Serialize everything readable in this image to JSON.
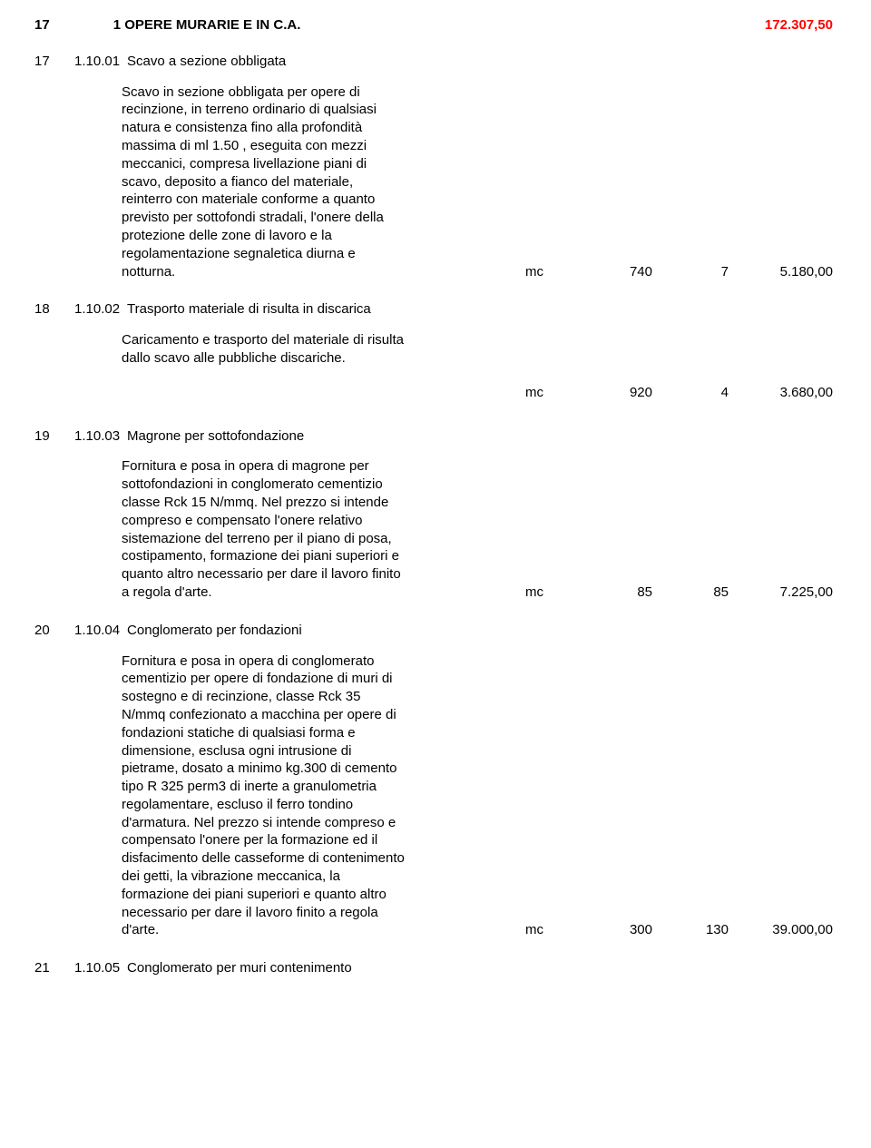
{
  "section": {
    "num": "17",
    "code": "1",
    "title": "OPERE MURARIE E IN C.A.",
    "total": "172.307,50"
  },
  "items": [
    {
      "num": "17",
      "code": "1.10.01",
      "title": "Scavo a sezione obbligata",
      "desc": "Scavo in sezione obbligata per opere di\nrecinzione, in terreno ordinario di qualsiasi\nnatura e consistenza fino alla profondità\nmassima di ml 1.50 , eseguita con mezzi\nmeccanici, compresa livellazione piani di\nscavo, deposito a fianco del materiale,\nreinterro con materiale conforme a quanto\nprevisto per sottofondi stradali, l'onere della\nprotezione delle zone di lavoro e la\nregolamentazione segnaletica diurna e\nnotturna.",
      "unit": "mc",
      "qty": "740",
      "price": "7",
      "total": "5.180,00",
      "valuesInline": true
    },
    {
      "num": "18",
      "code": "1.10.02",
      "title": "Trasporto materiale di risulta in discarica",
      "desc": "Caricamento e trasporto del materiale di risulta\ndallo scavo alle pubbliche discariche.",
      "unit": "mc",
      "qty": "920",
      "price": "4",
      "total": "3.680,00",
      "valuesInline": false
    },
    {
      "num": "19",
      "code": "1.10.03",
      "title": "Magrone per sottofondazione",
      "desc": "Fornitura e posa in opera di magrone per\nsottofondazioni in conglomerato cementizio\nclasse Rck 15 N/mmq. Nel prezzo si intende\ncompreso e compensato l'onere relativo\nsistemazione del terreno per il piano di posa,\ncostipamento, formazione dei piani superiori e\nquanto altro necessario per dare il lavoro finito\na regola d'arte.",
      "unit": "mc",
      "qty": "85",
      "price": "85",
      "total": "7.225,00",
      "valuesInline": true
    },
    {
      "num": "20",
      "code": "1.10.04",
      "title": "Conglomerato per fondazioni",
      "desc": "Fornitura e posa in opera di conglomerato\ncementizio per opere di fondazione di muri di\nsostegno e di recinzione, classe Rck 35\nN/mmq confezionato a macchina per opere di\nfondazioni statiche di qualsiasi forma e\ndimensione, esclusa ogni intrusione di\npietrame, dosato a minimo kg.300 di cemento\ntipo R 325 perm3 di inerte a granulometria\nregolamentare, escluso il ferro tondino\nd'armatura. Nel prezzo si intende compreso e\ncompensato l'onere per la formazione ed il\ndisfacimento delle casseforme di contenimento\ndei getti, la vibrazione meccanica, la\nformazione dei piani superiori e quanto altro\nnecessario per dare il lavoro finito a regola\nd'arte.",
      "unit": "mc",
      "qty": "300",
      "price": "130",
      "total": "39.000,00",
      "valuesInline": true
    }
  ],
  "trailingItem": {
    "num": "21",
    "code": "1.10.05",
    "title": "Conglomerato per muri contenimento"
  }
}
